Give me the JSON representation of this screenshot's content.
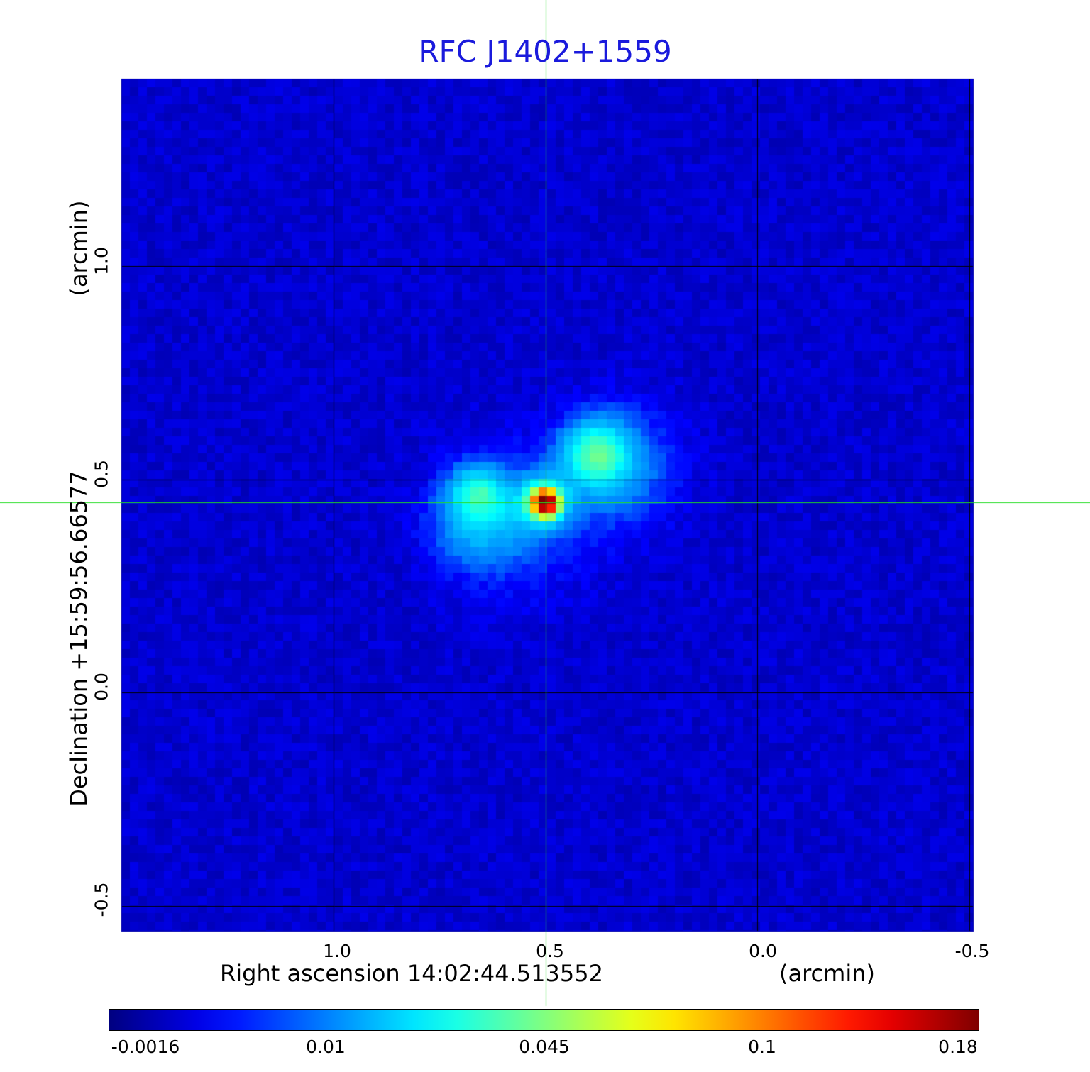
{
  "chart_data": {
    "type": "heatmap",
    "title": "RFC J1402+1559",
    "xlabel": "Right ascension  14:02:44.513552",
    "xunit": "(arcmin)",
    "ylabel": "Declination  +15:59:56.66577",
    "yunit": "(arcmin)",
    "x_ticks": [
      "1.0",
      "0.5",
      "0.0",
      "-0.5"
    ],
    "x_tick_values": [
      1.0,
      0.5,
      0.0,
      -0.5
    ],
    "y_ticks": [
      "1.0",
      "0.5",
      "0.0",
      "-0.5"
    ],
    "y_tick_values": [
      1.0,
      0.5,
      0.0,
      -0.5
    ],
    "xlim": [
      1.5,
      -0.51
    ],
    "ylim": [
      -0.56,
      1.44
    ],
    "x_reversed": true,
    "grid": true,
    "crosshair": {
      "x": 0.5,
      "y": 0.446,
      "color": "#22dd22"
    },
    "colormap": "jet",
    "colorbar": {
      "ticks": [
        "-0.0016",
        "0.01",
        "0.045",
        "0.1",
        "0.18"
      ],
      "values": [
        -0.0016,
        0.01,
        0.045,
        0.1,
        0.18
      ],
      "scale": "nonlinear"
    },
    "peak": {
      "x": 0.5,
      "y": 0.446,
      "value": 0.18
    },
    "components": [
      {
        "x": 0.5,
        "y": 0.446,
        "value": 0.18,
        "sigma": 0.018
      },
      {
        "x": 0.505,
        "y": 0.446,
        "value": 0.035,
        "sigma": 0.04
      },
      {
        "x": 0.38,
        "y": 0.56,
        "value": 0.032,
        "sigma": 0.05
      },
      {
        "x": 0.33,
        "y": 0.53,
        "value": 0.012,
        "sigma": 0.09
      },
      {
        "x": 0.66,
        "y": 0.47,
        "value": 0.022,
        "sigma": 0.04
      },
      {
        "x": 0.655,
        "y": 0.41,
        "value": 0.016,
        "sigma": 0.07
      },
      {
        "x": 0.57,
        "y": 0.4,
        "value": 0.006,
        "sigma": 0.12
      }
    ]
  }
}
